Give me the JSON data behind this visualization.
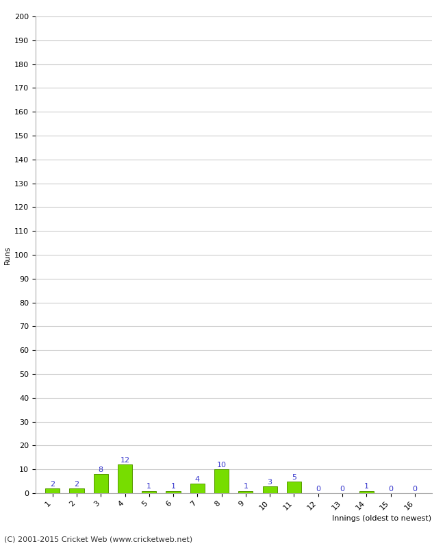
{
  "title": "",
  "xlabel": "Innings (oldest to newest)",
  "ylabel": "Runs",
  "innings": [
    1,
    2,
    3,
    4,
    5,
    6,
    7,
    8,
    9,
    10,
    11,
    12,
    13,
    14,
    15,
    16
  ],
  "values": [
    2,
    2,
    8,
    12,
    1,
    1,
    4,
    10,
    1,
    3,
    5,
    0,
    0,
    1,
    0,
    0
  ],
  "bar_color": "#77dd00",
  "bar_edge_color": "#559900",
  "label_color": "#3333cc",
  "ylim": [
    0,
    200
  ],
  "ytick_step": 10,
  "footer": "(C) 2001-2015 Cricket Web (www.cricketweb.net)",
  "grid_color": "#cccccc",
  "background_color": "#ffffff",
  "axis_label_fontsize": 8,
  "tick_label_fontsize": 8,
  "bar_label_fontsize": 8,
  "footer_fontsize": 8
}
